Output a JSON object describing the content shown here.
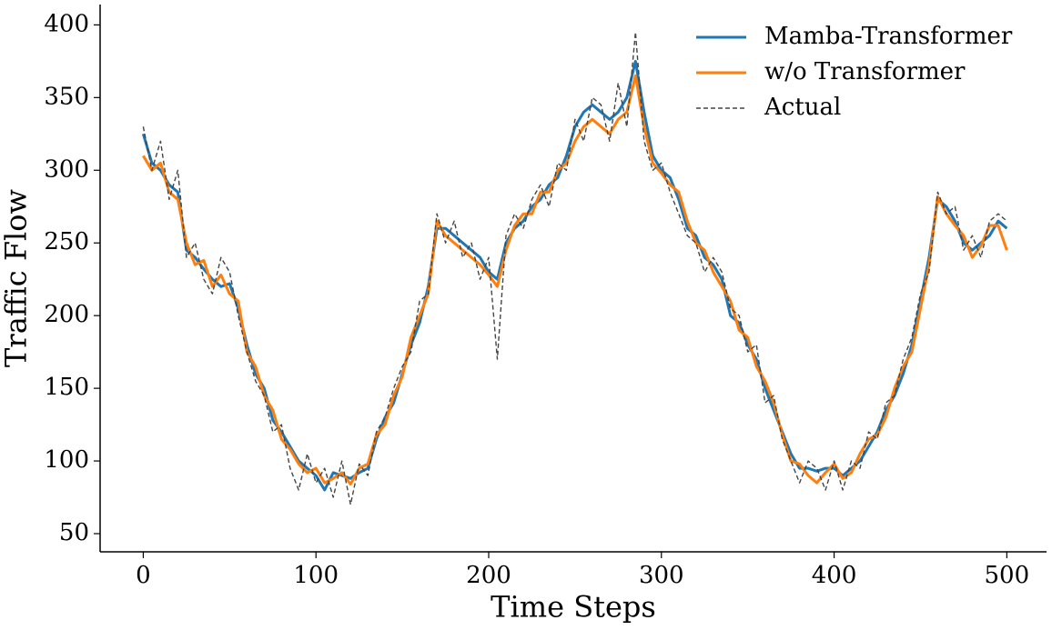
{
  "chart_data": {
    "type": "line",
    "xlabel": "Time Steps",
    "ylabel": "Traffic Flow",
    "x": [
      0,
      5,
      10,
      15,
      20,
      25,
      30,
      35,
      40,
      45,
      50,
      55,
      60,
      65,
      70,
      75,
      80,
      85,
      90,
      95,
      100,
      105,
      110,
      115,
      120,
      125,
      130,
      135,
      140,
      145,
      150,
      155,
      160,
      165,
      170,
      175,
      180,
      185,
      190,
      195,
      200,
      205,
      210,
      215,
      220,
      225,
      230,
      235,
      240,
      245,
      250,
      255,
      260,
      265,
      270,
      275,
      280,
      285,
      290,
      295,
      300,
      305,
      310,
      315,
      320,
      325,
      330,
      335,
      340,
      345,
      350,
      355,
      360,
      365,
      370,
      375,
      380,
      385,
      390,
      395,
      400,
      405,
      410,
      415,
      420,
      425,
      430,
      435,
      440,
      445,
      450,
      455,
      460,
      465,
      470,
      475,
      480,
      485,
      490,
      495,
      500
    ],
    "series": [
      {
        "name": "Mamba-Transformer",
        "color": "#1f77b4",
        "width": 3,
        "dash": null,
        "values": [
          325,
          305,
          300,
          290,
          285,
          245,
          240,
          232,
          225,
          220,
          222,
          205,
          180,
          160,
          150,
          128,
          120,
          110,
          100,
          95,
          90,
          80,
          92,
          90,
          88,
          92,
          95,
          115,
          130,
          140,
          160,
          180,
          195,
          220,
          260,
          260,
          255,
          250,
          245,
          240,
          230,
          225,
          250,
          260,
          265,
          275,
          280,
          290,
          295,
          310,
          330,
          340,
          345,
          340,
          335,
          340,
          350,
          375,
          340,
          310,
          300,
          295,
          280,
          260,
          255,
          240,
          235,
          225,
          200,
          195,
          180,
          170,
          150,
          135,
          120,
          105,
          95,
          95,
          93,
          95,
          95,
          90,
          95,
          100,
          110,
          120,
          135,
          145,
          160,
          180,
          210,
          240,
          280,
          275,
          265,
          250,
          245,
          250,
          255,
          265,
          260
        ]
      },
      {
        "name": "w/o Transformer",
        "color": "#ff7f0e",
        "width": 3,
        "dash": null,
        "values": [
          310,
          300,
          305,
          285,
          280,
          250,
          235,
          238,
          220,
          228,
          215,
          210,
          175,
          165,
          145,
          135,
          115,
          108,
          98,
          92,
          95,
          85,
          88,
          92,
          84,
          95,
          98,
          118,
          125,
          145,
          158,
          185,
          200,
          215,
          265,
          255,
          250,
          245,
          240,
          235,
          228,
          220,
          245,
          262,
          270,
          270,
          285,
          285,
          300,
          305,
          320,
          330,
          335,
          330,
          325,
          335,
          340,
          365,
          330,
          305,
          298,
          290,
          285,
          265,
          250,
          245,
          230,
          220,
          210,
          190,
          185,
          165,
          155,
          140,
          118,
          100,
          98,
          90,
          85,
          92,
          98,
          88,
          92,
          105,
          115,
          118,
          130,
          150,
          165,
          175,
          205,
          235,
          282,
          270,
          262,
          255,
          240,
          248,
          262,
          262,
          245
        ]
      },
      {
        "name": "Actual",
        "color": "#444444",
        "width": 1.4,
        "dash": "5,3",
        "values": [
          330,
          300,
          320,
          280,
          300,
          240,
          250,
          225,
          215,
          240,
          230,
          200,
          175,
          155,
          145,
          120,
          125,
          95,
          80,
          105,
          85,
          95,
          75,
          100,
          70,
          98,
          90,
          120,
          130,
          150,
          165,
          175,
          210,
          215,
          270,
          250,
          265,
          240,
          250,
          225,
          240,
          170,
          255,
          270,
          260,
          280,
          290,
          275,
          305,
          300,
          335,
          320,
          350,
          345,
          320,
          360,
          330,
          395,
          320,
          300,
          305,
          285,
          270,
          255,
          250,
          230,
          240,
          230,
          205,
          200,
          175,
          180,
          140,
          145,
          115,
          100,
          85,
          100,
          95,
          80,
          100,
          80,
          100,
          95,
          120,
          115,
          140,
          145,
          170,
          185,
          215,
          230,
          285,
          270,
          275,
          245,
          255,
          240,
          265,
          270,
          265
        ]
      }
    ],
    "xlim": [
      -25,
      523
    ],
    "ylim": [
      37.5,
      414
    ],
    "xticks": [
      0,
      100,
      200,
      300,
      400,
      500
    ],
    "yticks": [
      50,
      100,
      150,
      200,
      250,
      300,
      350,
      400
    ],
    "legend": "upper right",
    "grid": false
  }
}
